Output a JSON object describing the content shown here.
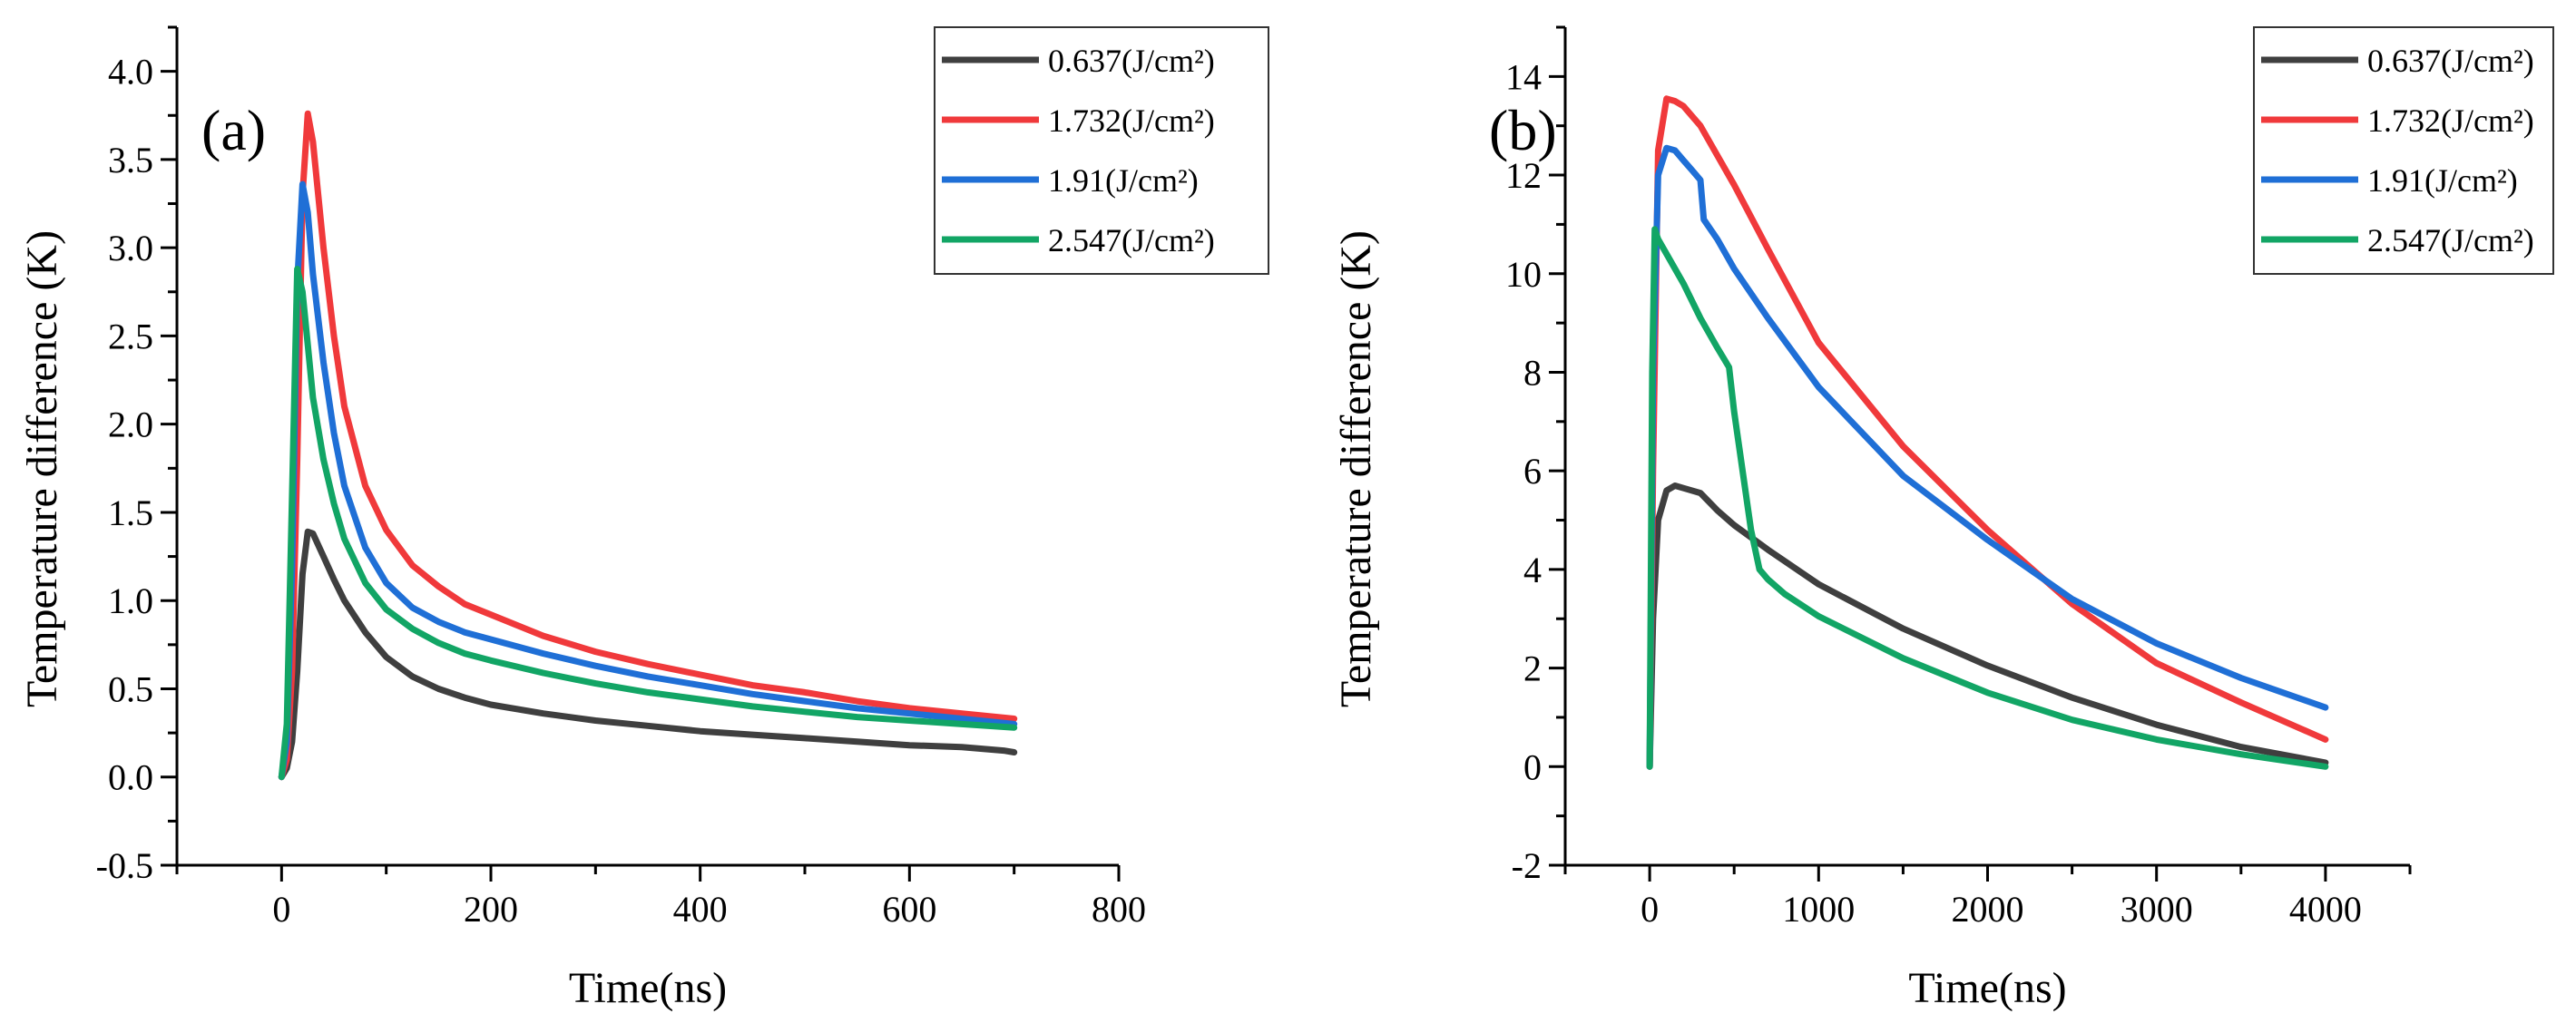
{
  "chart_data": [
    {
      "type": "line",
      "panel_label": "(a)",
      "xlabel": "Time(ns)",
      "ylabel": "Temperature difference (K)",
      "xlim": [
        -100,
        800
      ],
      "ylim": [
        -0.5,
        4.25
      ],
      "xticks": [
        0,
        200,
        400,
        600,
        800
      ],
      "yticks": [
        -0.5,
        0.0,
        0.5,
        1.0,
        1.5,
        2.0,
        2.5,
        3.0,
        3.5,
        4.0
      ],
      "xtick_labels": [
        "0",
        "200",
        "400",
        "600",
        "800"
      ],
      "ytick_labels": [
        "-0.5",
        "0.0",
        "0.5",
        "1.0",
        "1.5",
        "2.0",
        "2.5",
        "3.0",
        "3.5",
        "4.0"
      ],
      "grid": false,
      "legend_position": "top-right",
      "series": [
        {
          "name": "0.637(J/cm²)",
          "color": "#3f3f3f",
          "x": [
            0,
            5,
            10,
            15,
            20,
            25,
            30,
            40,
            50,
            60,
            80,
            100,
            125,
            150,
            175,
            200,
            250,
            300,
            350,
            400,
            450,
            500,
            550,
            600,
            650,
            690,
            700
          ],
          "y": [
            0.0,
            0.05,
            0.2,
            0.6,
            1.15,
            1.39,
            1.38,
            1.25,
            1.12,
            1.0,
            0.82,
            0.68,
            0.57,
            0.5,
            0.45,
            0.41,
            0.36,
            0.32,
            0.29,
            0.26,
            0.24,
            0.22,
            0.2,
            0.18,
            0.17,
            0.15,
            0.14
          ]
        },
        {
          "name": "1.732(J/cm²)",
          "color": "#f0393b",
          "x": [
            0,
            5,
            10,
            15,
            20,
            25,
            30,
            40,
            50,
            60,
            80,
            100,
            125,
            150,
            175,
            200,
            250,
            300,
            350,
            400,
            450,
            500,
            550,
            600,
            650,
            700
          ],
          "y": [
            0.0,
            0.1,
            0.6,
            1.8,
            3.3,
            3.76,
            3.6,
            3.0,
            2.5,
            2.1,
            1.65,
            1.4,
            1.2,
            1.08,
            0.98,
            0.92,
            0.8,
            0.71,
            0.64,
            0.58,
            0.52,
            0.48,
            0.43,
            0.39,
            0.36,
            0.33
          ]
        },
        {
          "name": "1.91(J/cm²)",
          "color": "#1f6fd6",
          "x": [
            0,
            5,
            10,
            15,
            20,
            25,
            30,
            40,
            50,
            60,
            80,
            100,
            125,
            150,
            175,
            200,
            250,
            300,
            350,
            400,
            450,
            500,
            550,
            600,
            650,
            700
          ],
          "y": [
            0.0,
            0.2,
            1.2,
            2.8,
            3.36,
            3.2,
            2.85,
            2.35,
            1.95,
            1.65,
            1.3,
            1.1,
            0.96,
            0.88,
            0.82,
            0.78,
            0.7,
            0.63,
            0.57,
            0.52,
            0.47,
            0.43,
            0.39,
            0.36,
            0.33,
            0.3
          ]
        },
        {
          "name": "2.547(J/cm²)",
          "color": "#12a565",
          "x": [
            0,
            5,
            10,
            15,
            20,
            25,
            30,
            40,
            50,
            60,
            80,
            100,
            125,
            150,
            175,
            200,
            250,
            300,
            350,
            400,
            450,
            500,
            550,
            600,
            650,
            700
          ],
          "y": [
            0.0,
            0.3,
            1.6,
            2.88,
            2.75,
            2.45,
            2.15,
            1.8,
            1.55,
            1.35,
            1.1,
            0.95,
            0.84,
            0.76,
            0.7,
            0.66,
            0.59,
            0.53,
            0.48,
            0.44,
            0.4,
            0.37,
            0.34,
            0.32,
            0.3,
            0.28
          ]
        }
      ]
    },
    {
      "type": "line",
      "panel_label": "(b)",
      "xlabel": "Time(ns)",
      "ylabel": "Temperature difference (K)",
      "xlim": [
        -500,
        4500
      ],
      "ylim": [
        -2,
        15
      ],
      "xticks": [
        0,
        1000,
        2000,
        3000,
        4000
      ],
      "yticks": [
        -2,
        0,
        2,
        4,
        6,
        8,
        10,
        12,
        14
      ],
      "xtick_labels": [
        "0",
        "1000",
        "2000",
        "3000",
        "4000"
      ],
      "ytick_labels": [
        "-2",
        "0",
        "2",
        "4",
        "6",
        "8",
        "10",
        "12",
        "14"
      ],
      "grid": false,
      "legend_position": "top-right",
      "series": [
        {
          "name": "0.637(J/cm²)",
          "color": "#3f3f3f",
          "x": [
            0,
            20,
            50,
            100,
            150,
            200,
            300,
            400,
            500,
            700,
            1000,
            1500,
            2000,
            2500,
            3000,
            3500,
            4000
          ],
          "y": [
            0.0,
            3.0,
            5.0,
            5.6,
            5.7,
            5.65,
            5.55,
            5.2,
            4.9,
            4.4,
            3.7,
            2.8,
            2.05,
            1.4,
            0.85,
            0.4,
            0.08
          ]
        },
        {
          "name": "1.732(J/cm²)",
          "color": "#f0393b",
          "x": [
            0,
            20,
            50,
            100,
            150,
            200,
            300,
            400,
            500,
            700,
            1000,
            1500,
            2000,
            2500,
            3000,
            3500,
            4000
          ],
          "y": [
            0.0,
            6.0,
            12.5,
            13.55,
            13.5,
            13.4,
            13.0,
            12.4,
            11.8,
            10.5,
            8.6,
            6.5,
            4.8,
            3.3,
            2.1,
            1.3,
            0.55
          ]
        },
        {
          "name": "1.91(J/cm²)",
          "color": "#1f6fd6",
          "x": [
            0,
            20,
            50,
            100,
            150,
            200,
            250,
            300,
            320,
            400,
            500,
            700,
            1000,
            1500,
            2000,
            2500,
            3000,
            3500,
            4000
          ],
          "y": [
            0.0,
            8.0,
            12.0,
            12.55,
            12.5,
            12.3,
            12.1,
            11.9,
            11.1,
            10.7,
            10.1,
            9.1,
            7.7,
            5.9,
            4.6,
            3.4,
            2.5,
            1.8,
            1.2
          ]
        },
        {
          "name": "2.547(J/cm²)",
          "color": "#12a565",
          "x": [
            0,
            15,
            30,
            50,
            100,
            200,
            300,
            400,
            470,
            500,
            550,
            600,
            650,
            700,
            800,
            1000,
            1500,
            2000,
            2500,
            3000,
            3500,
            4000
          ],
          "y": [
            0.0,
            8.0,
            10.9,
            10.7,
            10.4,
            9.8,
            9.1,
            8.5,
            8.1,
            7.2,
            6.0,
            4.8,
            4.0,
            3.8,
            3.5,
            3.05,
            2.2,
            1.5,
            0.95,
            0.55,
            0.25,
            0.0
          ]
        }
      ]
    }
  ]
}
